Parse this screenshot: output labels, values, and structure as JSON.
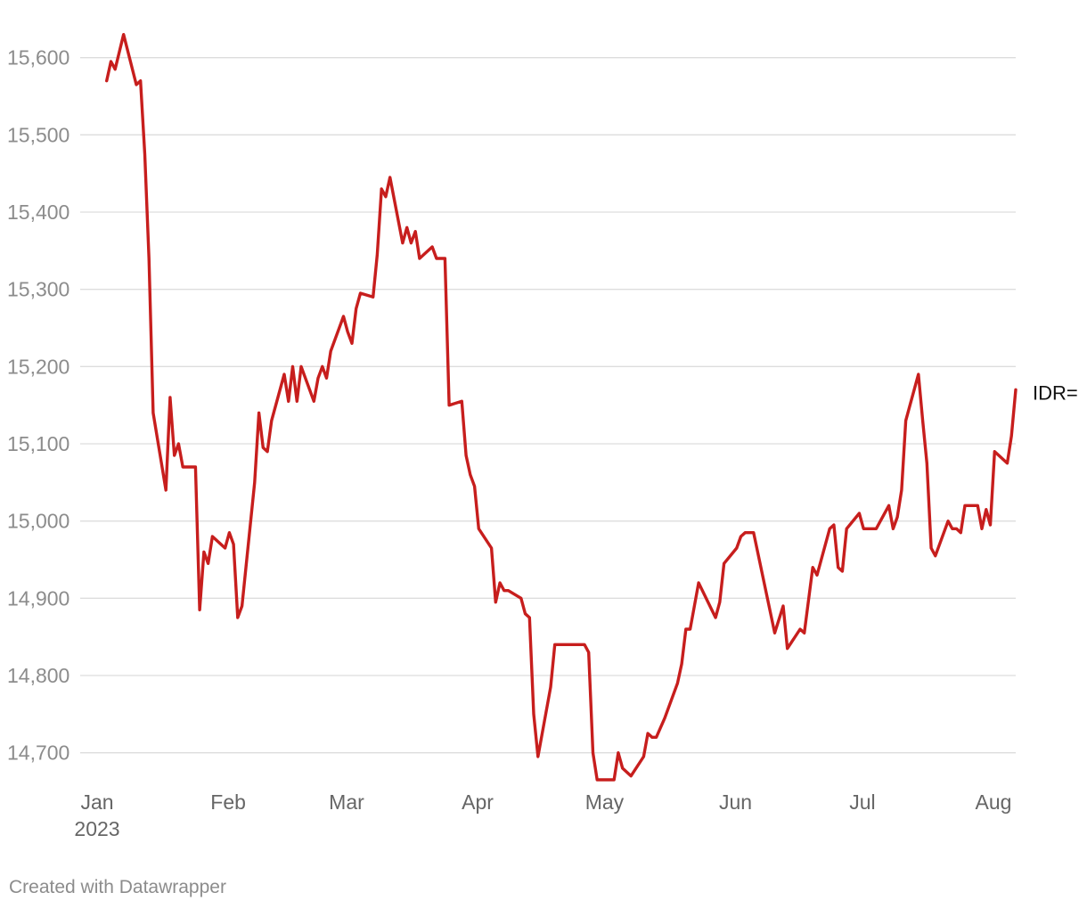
{
  "chart_data": {
    "type": "line",
    "title": "",
    "xlabel": "",
    "ylabel": "",
    "ylim": [
      14665,
      15640
    ],
    "xlim": [
      "2023-01-01",
      "2023-08-01"
    ],
    "grid": true,
    "y_ticks": [
      14700,
      14800,
      14900,
      15000,
      15100,
      15200,
      15300,
      15400,
      15500,
      15600
    ],
    "y_tick_labels": [
      "14,700",
      "14,800",
      "14,900",
      "15,000",
      "15,100",
      "15,200",
      "15,300",
      "15,400",
      "15,500",
      "15,600"
    ],
    "x_ticks": [
      {
        "date": "2023-01-01",
        "label": "Jan",
        "sublabel": "2023"
      },
      {
        "date": "2023-02-01",
        "label": "Feb",
        "sublabel": ""
      },
      {
        "date": "2023-03-01",
        "label": "Mar",
        "sublabel": ""
      },
      {
        "date": "2023-04-01",
        "label": "Apr",
        "sublabel": ""
      },
      {
        "date": "2023-05-01",
        "label": "May",
        "sublabel": ""
      },
      {
        "date": "2023-06-01",
        "label": "Jun",
        "sublabel": ""
      },
      {
        "date": "2023-07-01",
        "label": "Jul",
        "sublabel": ""
      },
      {
        "date": "2023-08-01",
        "label": "Aug",
        "sublabel": ""
      }
    ],
    "series": [
      {
        "name": "IDR=",
        "color": "#c71e1d",
        "points": [
          [
            "2023-01-02",
            15570
          ],
          [
            "2023-01-03",
            15595
          ],
          [
            "2023-01-04",
            15585
          ],
          [
            "2023-01-06",
            15630
          ],
          [
            "2023-01-09",
            15565
          ],
          [
            "2023-01-10",
            15570
          ],
          [
            "2023-01-11",
            15475
          ],
          [
            "2023-01-12",
            15340
          ],
          [
            "2023-01-13",
            15140
          ],
          [
            "2023-01-16",
            15040
          ],
          [
            "2023-01-17",
            15160
          ],
          [
            "2023-01-18",
            15085
          ],
          [
            "2023-01-19",
            15100
          ],
          [
            "2023-01-20",
            15070
          ],
          [
            "2023-01-23",
            15070
          ],
          [
            "2023-01-24",
            14885
          ],
          [
            "2023-01-25",
            14960
          ],
          [
            "2023-01-26",
            14945
          ],
          [
            "2023-01-27",
            14980
          ],
          [
            "2023-01-30",
            14965
          ],
          [
            "2023-01-31",
            14985
          ],
          [
            "2023-02-01",
            14970
          ],
          [
            "2023-02-02",
            14875
          ],
          [
            "2023-02-03",
            14890
          ],
          [
            "2023-02-06",
            15050
          ],
          [
            "2023-02-07",
            15140
          ],
          [
            "2023-02-08",
            15095
          ],
          [
            "2023-02-09",
            15090
          ],
          [
            "2023-02-10",
            15130
          ],
          [
            "2023-02-13",
            15190
          ],
          [
            "2023-02-14",
            15155
          ],
          [
            "2023-02-15",
            15200
          ],
          [
            "2023-02-16",
            15155
          ],
          [
            "2023-02-17",
            15200
          ],
          [
            "2023-02-20",
            15155
          ],
          [
            "2023-02-21",
            15185
          ],
          [
            "2023-02-22",
            15200
          ],
          [
            "2023-02-23",
            15185
          ],
          [
            "2023-02-24",
            15220
          ],
          [
            "2023-02-27",
            15265
          ],
          [
            "2023-02-28",
            15245
          ],
          [
            "2023-03-01",
            15230
          ],
          [
            "2023-03-02",
            15275
          ],
          [
            "2023-03-03",
            15295
          ],
          [
            "2023-03-06",
            15290
          ],
          [
            "2023-03-07",
            15345
          ],
          [
            "2023-03-08",
            15430
          ],
          [
            "2023-03-09",
            15420
          ],
          [
            "2023-03-10",
            15445
          ],
          [
            "2023-03-13",
            15360
          ],
          [
            "2023-03-14",
            15380
          ],
          [
            "2023-03-15",
            15360
          ],
          [
            "2023-03-16",
            15375
          ],
          [
            "2023-03-17",
            15340
          ],
          [
            "2023-03-20",
            15355
          ],
          [
            "2023-03-21",
            15340
          ],
          [
            "2023-03-23",
            15340
          ],
          [
            "2023-03-24",
            15150
          ],
          [
            "2023-03-27",
            15155
          ],
          [
            "2023-03-28",
            15085
          ],
          [
            "2023-03-29",
            15060
          ],
          [
            "2023-03-30",
            15045
          ],
          [
            "2023-03-31",
            14990
          ],
          [
            "2023-04-03",
            14965
          ],
          [
            "2023-04-04",
            14895
          ],
          [
            "2023-04-05",
            14920
          ],
          [
            "2023-04-06",
            14910
          ],
          [
            "2023-04-07",
            14910
          ],
          [
            "2023-04-10",
            14900
          ],
          [
            "2023-04-11",
            14880
          ],
          [
            "2023-04-12",
            14875
          ],
          [
            "2023-04-13",
            14750
          ],
          [
            "2023-04-14",
            14695
          ],
          [
            "2023-04-17",
            14785
          ],
          [
            "2023-04-18",
            14840
          ],
          [
            "2023-04-25",
            14840
          ],
          [
            "2023-04-26",
            14830
          ],
          [
            "2023-04-27",
            14700
          ],
          [
            "2023-04-28",
            14665
          ],
          [
            "2023-05-02",
            14665
          ],
          [
            "2023-05-03",
            14700
          ],
          [
            "2023-05-04",
            14680
          ],
          [
            "2023-05-06",
            14670
          ],
          [
            "2023-05-09",
            14695
          ],
          [
            "2023-05-10",
            14725
          ],
          [
            "2023-05-11",
            14720
          ],
          [
            "2023-05-12",
            14720
          ],
          [
            "2023-05-14",
            14745
          ],
          [
            "2023-05-17",
            14790
          ],
          [
            "2023-05-18",
            14815
          ],
          [
            "2023-05-19",
            14860
          ],
          [
            "2023-05-20",
            14860
          ],
          [
            "2023-05-22",
            14920
          ],
          [
            "2023-05-26",
            14875
          ],
          [
            "2023-05-27",
            14895
          ],
          [
            "2023-05-28",
            14945
          ],
          [
            "2023-05-31",
            14965
          ],
          [
            "2023-06-01",
            14980
          ],
          [
            "2023-06-02",
            14985
          ],
          [
            "2023-06-04",
            14985
          ],
          [
            "2023-06-09",
            14855
          ],
          [
            "2023-06-11",
            14890
          ],
          [
            "2023-06-12",
            14835
          ],
          [
            "2023-06-15",
            14860
          ],
          [
            "2023-06-16",
            14855
          ],
          [
            "2023-06-18",
            14940
          ],
          [
            "2023-06-19",
            14930
          ],
          [
            "2023-06-22",
            14990
          ],
          [
            "2023-06-23",
            14995
          ],
          [
            "2023-06-24",
            14940
          ],
          [
            "2023-06-25",
            14935
          ],
          [
            "2023-06-26",
            14990
          ],
          [
            "2023-06-29",
            15010
          ],
          [
            "2023-06-30",
            14990
          ],
          [
            "2023-07-03",
            14990
          ],
          [
            "2023-07-06",
            15020
          ],
          [
            "2023-07-07",
            14990
          ],
          [
            "2023-07-08",
            15005
          ],
          [
            "2023-07-09",
            15040
          ],
          [
            "2023-07-10",
            15130
          ],
          [
            "2023-07-11",
            15150
          ],
          [
            "2023-07-13",
            15190
          ],
          [
            "2023-07-14",
            15130
          ],
          [
            "2023-07-15",
            15075
          ],
          [
            "2023-07-16",
            14965
          ],
          [
            "2023-07-17",
            14955
          ],
          [
            "2023-07-20",
            15000
          ],
          [
            "2023-07-21",
            14990
          ],
          [
            "2023-07-22",
            14990
          ],
          [
            "2023-07-23",
            14985
          ],
          [
            "2023-07-24",
            15020
          ],
          [
            "2023-07-27",
            15020
          ],
          [
            "2023-07-28",
            14990
          ],
          [
            "2023-07-29",
            15015
          ],
          [
            "2023-07-30",
            14995
          ],
          [
            "2023-07-31",
            15090
          ],
          [
            "2023-08-03",
            15075
          ],
          [
            "2023-08-04",
            15110
          ],
          [
            "2023-08-05",
            15170
          ]
        ]
      }
    ]
  },
  "footer": {
    "credit": "Created with Datawrapper"
  }
}
